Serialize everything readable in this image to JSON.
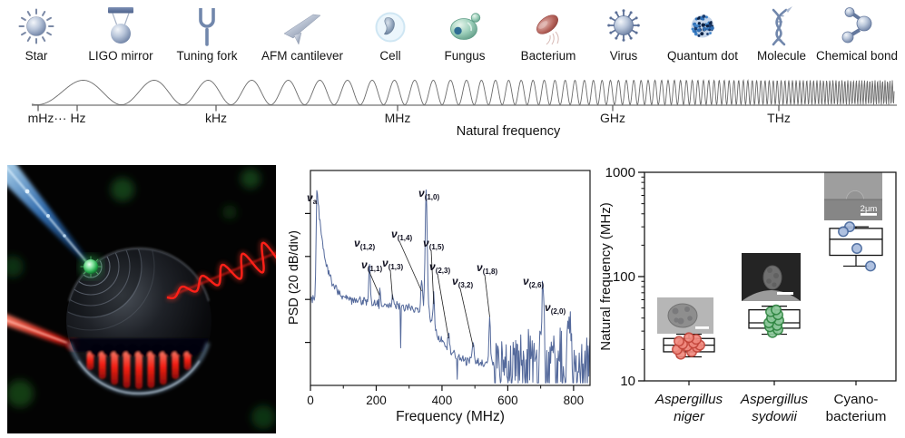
{
  "top_band": {
    "items": [
      {
        "name": "star",
        "label": "Star"
      },
      {
        "name": "ligo-mirror",
        "label": "LIGO mirror"
      },
      {
        "name": "tuning-fork",
        "label": "Tuning fork"
      },
      {
        "name": "afm-cantilever",
        "label": "AFM cantilever"
      },
      {
        "name": "cell",
        "label": "Cell"
      },
      {
        "name": "fungus",
        "label": "Fungus"
      },
      {
        "name": "bacterium",
        "label": "Bacterium"
      },
      {
        "name": "virus",
        "label": "Virus"
      },
      {
        "name": "quantum-dot",
        "label": "Quantum dot"
      },
      {
        "name": "molecule",
        "label": "Molecule"
      },
      {
        "name": "chemical-bond",
        "label": "Chemical bond"
      }
    ],
    "axis": {
      "tick_labels": [
        "mHz···",
        "Hz",
        "kHz",
        "MHz",
        "GHz",
        "THz"
      ],
      "caption": "Natural frequency"
    }
  },
  "chart_data": [
    {
      "type": "line",
      "panel": "psd-spectrum",
      "title": "",
      "xlabel": "Frequency (MHz)",
      "ylabel": "PSD (20 dB/div)",
      "xlim": [
        0,
        850
      ],
      "xticks": [
        0,
        200,
        400,
        600,
        800
      ],
      "xticks_minor": [
        100,
        300,
        500,
        700
      ],
      "grid": false,
      "line_color": "#54699b",
      "peaks": [
        {
          "label": "ν",
          "sub": "a",
          "freq_mhz": 20,
          "apex": 0.91
        },
        {
          "label": "ν",
          "sub": "(1,2)",
          "freq_mhz": 180,
          "apex": 0.57
        },
        {
          "label": "ν",
          "sub": "(1,1)",
          "freq_mhz": 210,
          "apex": 0.44
        },
        {
          "label": "ν",
          "sub": "(1,3)",
          "freq_mhz": 250,
          "apex": 0.42
        },
        {
          "label": "ν",
          "sub": "(1,4)",
          "freq_mhz": 338,
          "apex": 0.46
        },
        {
          "label": "ν",
          "sub": "(1,0)",
          "freq_mhz": 352,
          "apex": 0.82
        },
        {
          "label": "ν",
          "sub": "(1,5)",
          "freq_mhz": 375,
          "apex": 0.4
        },
        {
          "label": "ν",
          "sub": "(2,3)",
          "freq_mhz": 420,
          "apex": 0.24
        },
        {
          "label": "ν",
          "sub": "(3,2)",
          "freq_mhz": 495,
          "apex": 0.2
        },
        {
          "label": "ν",
          "sub": "(1,8)",
          "freq_mhz": 545,
          "apex": 0.34
        },
        {
          "label": "ν",
          "sub": "(2,6)",
          "freq_mhz": 705,
          "apex": 0.5
        },
        {
          "label": "ν",
          "sub": "(2,0)",
          "freq_mhz": 788,
          "apex": 0.33
        }
      ]
    },
    {
      "type": "box",
      "panel": "natural-frequency-boxplot",
      "ylabel": "Natural frequency (MHz)",
      "yscale": "log",
      "ylim": [
        10,
        1000
      ],
      "yticks": [
        "10",
        "100",
        "1000"
      ],
      "categories": [
        {
          "label_line1": "Aspergillus",
          "label_line2": "niger",
          "italic": true,
          "box": {
            "whisker_low": 17,
            "q1": 19,
            "median": 22,
            "q3": 25.5,
            "whisker_high": 28
          },
          "points_mhz": [
            18,
            19,
            20,
            21,
            21.5,
            22,
            22.5,
            23,
            24,
            25,
            26
          ],
          "point_fill": "#f0897e",
          "point_stroke": "#c2453a",
          "inset_scalebar_label": ""
        },
        {
          "label_line1": "Aspergillus",
          "label_line2": "sydowii",
          "italic": true,
          "box": {
            "whisker_low": 28,
            "q1": 32,
            "median": 36,
            "q3": 48,
            "whisker_high": 52
          },
          "points_mhz": [
            29,
            31,
            33,
            34,
            36,
            38,
            40,
            43,
            46,
            48
          ],
          "point_fill": "#8cc79a",
          "point_stroke": "#2e8540",
          "inset_scalebar_label": ""
        },
        {
          "label_line1": "Cyano-",
          "label_line2": "bacterium",
          "italic": false,
          "box": {
            "whisker_low": 126,
            "q1": 160,
            "median": 228,
            "q3": 290,
            "whisker_high": 300
          },
          "points_mhz": [
            300,
            270,
            186,
            126
          ],
          "point_fill": "#a9bcde",
          "point_stroke": "#46679c",
          "inset_scalebar_label": "2μm"
        }
      ]
    }
  ]
}
